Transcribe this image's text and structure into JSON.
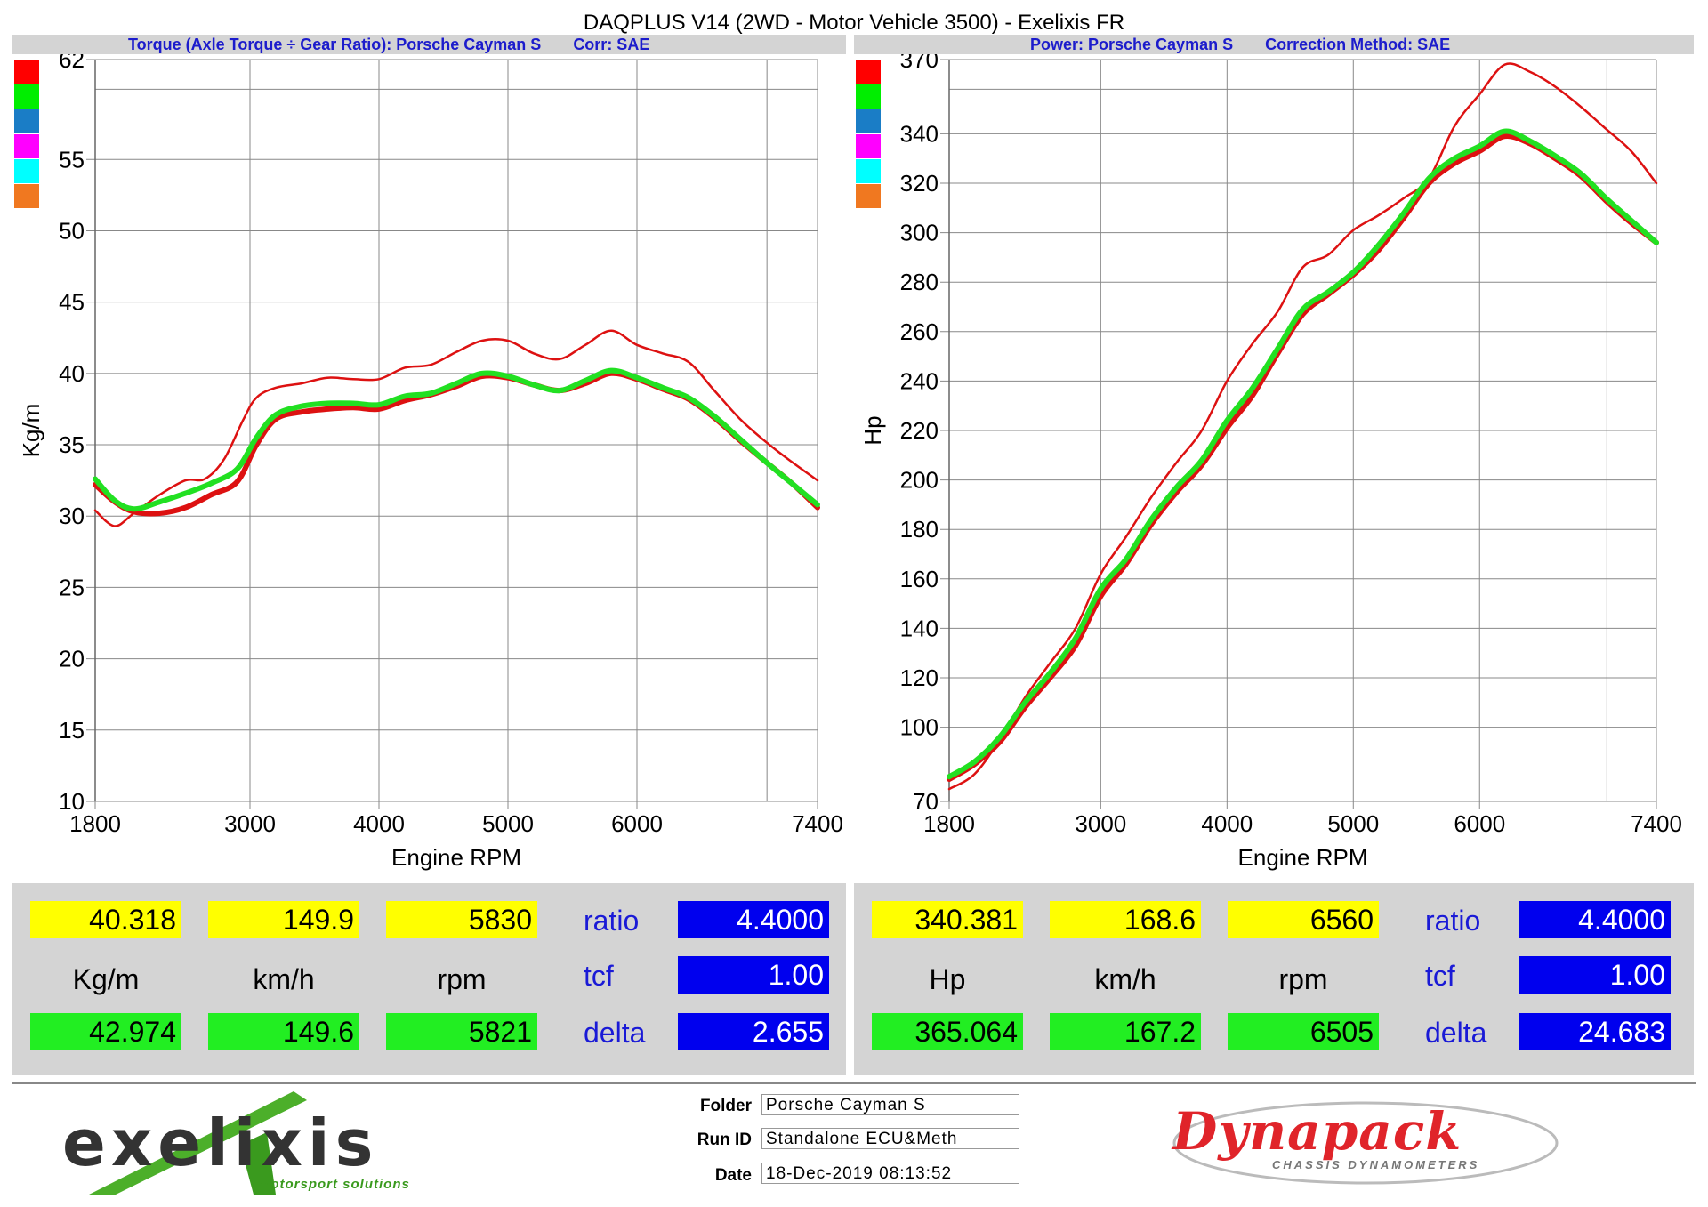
{
  "window": {
    "title": "DAQPLUS V14 (2WD - Motor Vehicle 3500) - Exelixis FR"
  },
  "left_panel": {
    "header_a": "Torque (Axle Torque ÷ Gear Ratio): Porsche Cayman S",
    "header_b": "Corr: SAE",
    "swatch_colors": [
      "#ff0000",
      "#00ee00",
      "#1a7dc6",
      "#ff00ff",
      "#00ffff",
      "#f07820"
    ],
    "readout": {
      "row1": [
        "40.318",
        "149.9",
        "5830"
      ],
      "units": [
        "Kg/m",
        "km/h",
        "rpm"
      ],
      "row2": [
        "42.974",
        "149.6",
        "5821"
      ],
      "params": [
        "ratio",
        "tcf",
        "delta"
      ],
      "param_values": [
        "4.4000",
        "1.00",
        "2.655"
      ]
    }
  },
  "right_panel": {
    "header_a": "Power: Porsche Cayman S",
    "header_b": "Correction Method: SAE",
    "swatch_colors": [
      "#ff0000",
      "#00ee00",
      "#1a7dc6",
      "#ff00ff",
      "#00ffff",
      "#f07820"
    ],
    "readout": {
      "row1": [
        "340.381",
        "168.6",
        "6560"
      ],
      "units": [
        "Hp",
        "km/h",
        "rpm"
      ],
      "row2": [
        "365.064",
        "167.2",
        "6505"
      ],
      "params": [
        "ratio",
        "tcf",
        "delta"
      ],
      "param_values": [
        "4.4000",
        "1.00",
        "24.683"
      ]
    }
  },
  "footer": {
    "logo_text": "exelixis",
    "logo_subtext": "motorsport solutions",
    "brand_logo_text": "Dynapack",
    "brand_logo_subtext": "CHASSIS DYNAMOMETERS",
    "folder_label": "Folder",
    "folder_value": "Porsche Cayman S",
    "runid_label": "Run ID",
    "runid_value": "Standalone ECU&Meth",
    "date_label": "Date",
    "date_value": "18-Dec-2019 08:13:52"
  },
  "chart_data": [
    {
      "type": "line",
      "title": "Torque (Axle Torque ÷ Gear Ratio): Porsche Cayman S",
      "xlabel": "Engine RPM",
      "ylabel": "Kg/m",
      "xlim": [
        1800,
        7400
      ],
      "ylim": [
        10,
        62
      ],
      "xticks": [
        1800,
        3000,
        4000,
        5000,
        6000,
        7400
      ],
      "yticks": [
        10,
        15,
        20,
        25,
        30,
        35,
        40,
        45,
        50,
        55,
        62
      ],
      "grid": true,
      "series": [
        {
          "color": "#dd1111",
          "width": 2.5,
          "x": [
            1800,
            1950,
            2100,
            2300,
            2500,
            2650,
            2800,
            2950,
            3050,
            3200,
            3400,
            3600,
            3800,
            4000,
            4200,
            4400,
            4600,
            4800,
            5000,
            5200,
            5400,
            5600,
            5800,
            6000,
            6200,
            6400,
            6600,
            6800,
            7000,
            7200,
            7400
          ],
          "y": [
            30.4,
            29.3,
            30.2,
            31.5,
            32.5,
            32.6,
            34.0,
            36.8,
            38.3,
            39.0,
            39.3,
            39.7,
            39.6,
            39.6,
            40.4,
            40.6,
            41.5,
            42.3,
            42.3,
            41.4,
            41.0,
            42.0,
            43.0,
            42.0,
            41.4,
            40.8,
            38.8,
            36.8,
            35.2,
            33.8,
            32.5
          ]
        },
        {
          "color": "#dd1111",
          "width": 6,
          "x": [
            1800,
            1950,
            2100,
            2300,
            2500,
            2700,
            2900,
            3050,
            3200,
            3400,
            3600,
            3800,
            4000,
            4200,
            4400,
            4600,
            4800,
            5000,
            5200,
            5400,
            5600,
            5800,
            6000,
            6200,
            6400,
            6600,
            6800,
            7000,
            7200,
            7400
          ],
          "y": [
            32.2,
            31.0,
            30.3,
            30.2,
            30.6,
            31.5,
            32.4,
            35.0,
            36.8,
            37.3,
            37.5,
            37.6,
            37.5,
            38.1,
            38.5,
            39.1,
            39.8,
            39.7,
            39.2,
            38.8,
            39.3,
            40.0,
            39.6,
            38.9,
            38.2,
            36.9,
            35.3,
            33.8,
            32.3,
            30.6
          ]
        },
        {
          "color": "#22e022",
          "width": 6,
          "x": [
            1800,
            1950,
            2100,
            2300,
            2500,
            2700,
            2900,
            3050,
            3200,
            3400,
            3600,
            3800,
            4000,
            4200,
            4400,
            4600,
            4800,
            5000,
            5200,
            5400,
            5600,
            5800,
            6000,
            6200,
            6400,
            6600,
            6800,
            7000,
            7200,
            7400
          ],
          "y": [
            32.6,
            31.1,
            30.5,
            31.0,
            31.6,
            32.3,
            33.3,
            35.5,
            37.1,
            37.7,
            37.9,
            37.9,
            37.8,
            38.4,
            38.6,
            39.3,
            40.0,
            39.8,
            39.2,
            38.8,
            39.5,
            40.2,
            39.7,
            39.0,
            38.3,
            37.0,
            35.4,
            33.8,
            32.3,
            30.8
          ]
        }
      ]
    },
    {
      "type": "line",
      "title": "Power: Porsche Cayman S",
      "xlabel": "Engine RPM",
      "ylabel": "Hp",
      "xlim": [
        1800,
        7400
      ],
      "ylim": [
        70,
        370
      ],
      "xticks": [
        1800,
        3000,
        4000,
        5000,
        6000,
        7400
      ],
      "yticks": [
        70,
        100,
        120,
        140,
        160,
        180,
        200,
        220,
        240,
        260,
        280,
        300,
        320,
        340,
        370
      ],
      "grid": true,
      "series": [
        {
          "color": "#dd1111",
          "width": 2.5,
          "x": [
            1800,
            2000,
            2200,
            2400,
            2600,
            2800,
            3000,
            3200,
            3400,
            3600,
            3800,
            4000,
            4200,
            4400,
            4600,
            4800,
            5000,
            5200,
            5400,
            5600,
            5800,
            6000,
            6200,
            6400,
            6600,
            6800,
            7000,
            7200,
            7400
          ],
          "y": [
            75,
            81,
            95,
            112,
            126,
            140,
            162,
            177,
            193,
            207,
            220,
            240,
            255,
            268,
            286,
            291,
            301,
            307,
            314,
            322,
            343,
            356,
            368,
            365,
            359,
            351,
            342,
            333,
            320
          ]
        },
        {
          "color": "#dd1111",
          "width": 6,
          "x": [
            1800,
            2000,
            2200,
            2400,
            2600,
            2800,
            3000,
            3200,
            3400,
            3600,
            3800,
            4000,
            4200,
            4400,
            4600,
            4800,
            5000,
            5200,
            5400,
            5600,
            5800,
            6000,
            6200,
            6400,
            6600,
            6800,
            7000,
            7200,
            7400
          ],
          "y": [
            79,
            85,
            94,
            108,
            120,
            133,
            153,
            166,
            182,
            195,
            206,
            221,
            234,
            251,
            267,
            275,
            283,
            293,
            306,
            320,
            328,
            333,
            339,
            336,
            330,
            323,
            313,
            304,
            296
          ]
        },
        {
          "color": "#22e022",
          "width": 6,
          "x": [
            1800,
            2000,
            2200,
            2400,
            2600,
            2800,
            3000,
            3200,
            3400,
            3600,
            3800,
            4000,
            4200,
            4400,
            4600,
            4800,
            5000,
            5200,
            5400,
            5600,
            5800,
            6000,
            6200,
            6400,
            6600,
            6800,
            7000,
            7200,
            7400
          ],
          "y": [
            80,
            86,
            96,
            110,
            122,
            136,
            156,
            168,
            184,
            197,
            208,
            224,
            237,
            253,
            269,
            276,
            284,
            295,
            308,
            322,
            330,
            335,
            341,
            337,
            331,
            324,
            314,
            305,
            296
          ]
        }
      ]
    }
  ]
}
